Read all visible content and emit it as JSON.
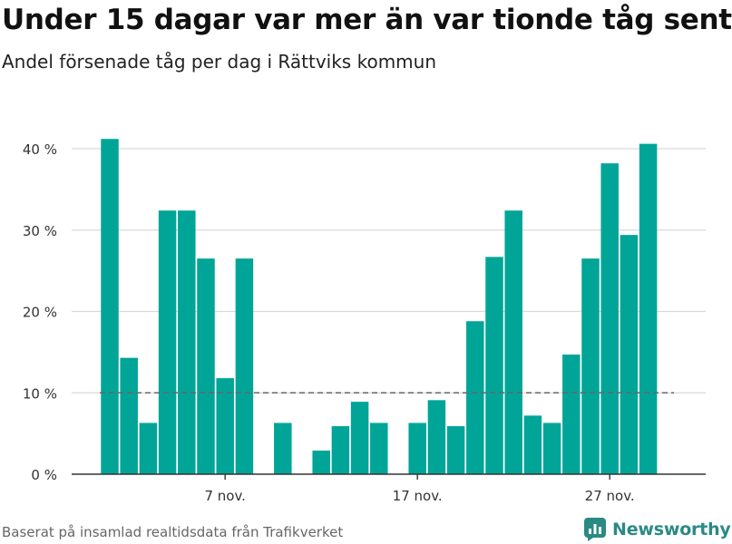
{
  "title": "Under 15 dagar var mer än var tionde tåg sent",
  "subtitle": "Andel försenade tåg per dag i Rättviks kommun",
  "footer": "Baserat på insamlad realtidsdata från Trafikverket",
  "brand": "Newsworthy",
  "colors": {
    "bar": "#00a598",
    "reference_line": "#666666",
    "grid": "#d9d9d9",
    "axis": "#333333",
    "brand": "#2a8a84"
  },
  "chart_data": {
    "type": "bar",
    "title": "Under 15 dagar var mer än var tionde tåg sent",
    "subtitle": "Andel försenade tåg per dag i Rättviks kommun",
    "xlabel": "",
    "ylabel": "",
    "categories": [
      "1 nov.",
      "2 nov.",
      "3 nov.",
      "4 nov.",
      "5 nov.",
      "6 nov.",
      "7 nov.",
      "8 nov.",
      "9 nov.",
      "10 nov.",
      "11 nov.",
      "12 nov.",
      "13 nov.",
      "14 nov.",
      "15 nov.",
      "16 nov.",
      "17 nov.",
      "18 nov.",
      "19 nov.",
      "20 nov.",
      "21 nov.",
      "22 nov.",
      "23 nov.",
      "24 nov.",
      "25 nov.",
      "26 nov.",
      "27 nov.",
      "28 nov.",
      "29 nov.",
      "30 nov."
    ],
    "values": [
      41.2,
      14.3,
      6.3,
      32.4,
      32.4,
      26.5,
      11.8,
      26.5,
      0,
      6.3,
      0,
      2.9,
      5.9,
      8.9,
      6.3,
      0,
      6.3,
      9.1,
      5.9,
      18.8,
      26.7,
      32.4,
      7.2,
      6.3,
      14.7,
      26.5,
      38.2,
      29.4,
      40.6,
      null
    ],
    "ylim": [
      0,
      42
    ],
    "yticks": [
      0,
      10,
      20,
      30,
      40
    ],
    "ytick_labels": [
      "0 %",
      "10 %",
      "20 %",
      "30 %",
      "40 %"
    ],
    "xticks": [
      "7 nov.",
      "17 nov.",
      "27 nov."
    ],
    "xtick_categories": [
      "7 nov.",
      "17 nov.",
      "27 nov."
    ],
    "reference_line": 10,
    "grid": true,
    "legend": "none"
  }
}
